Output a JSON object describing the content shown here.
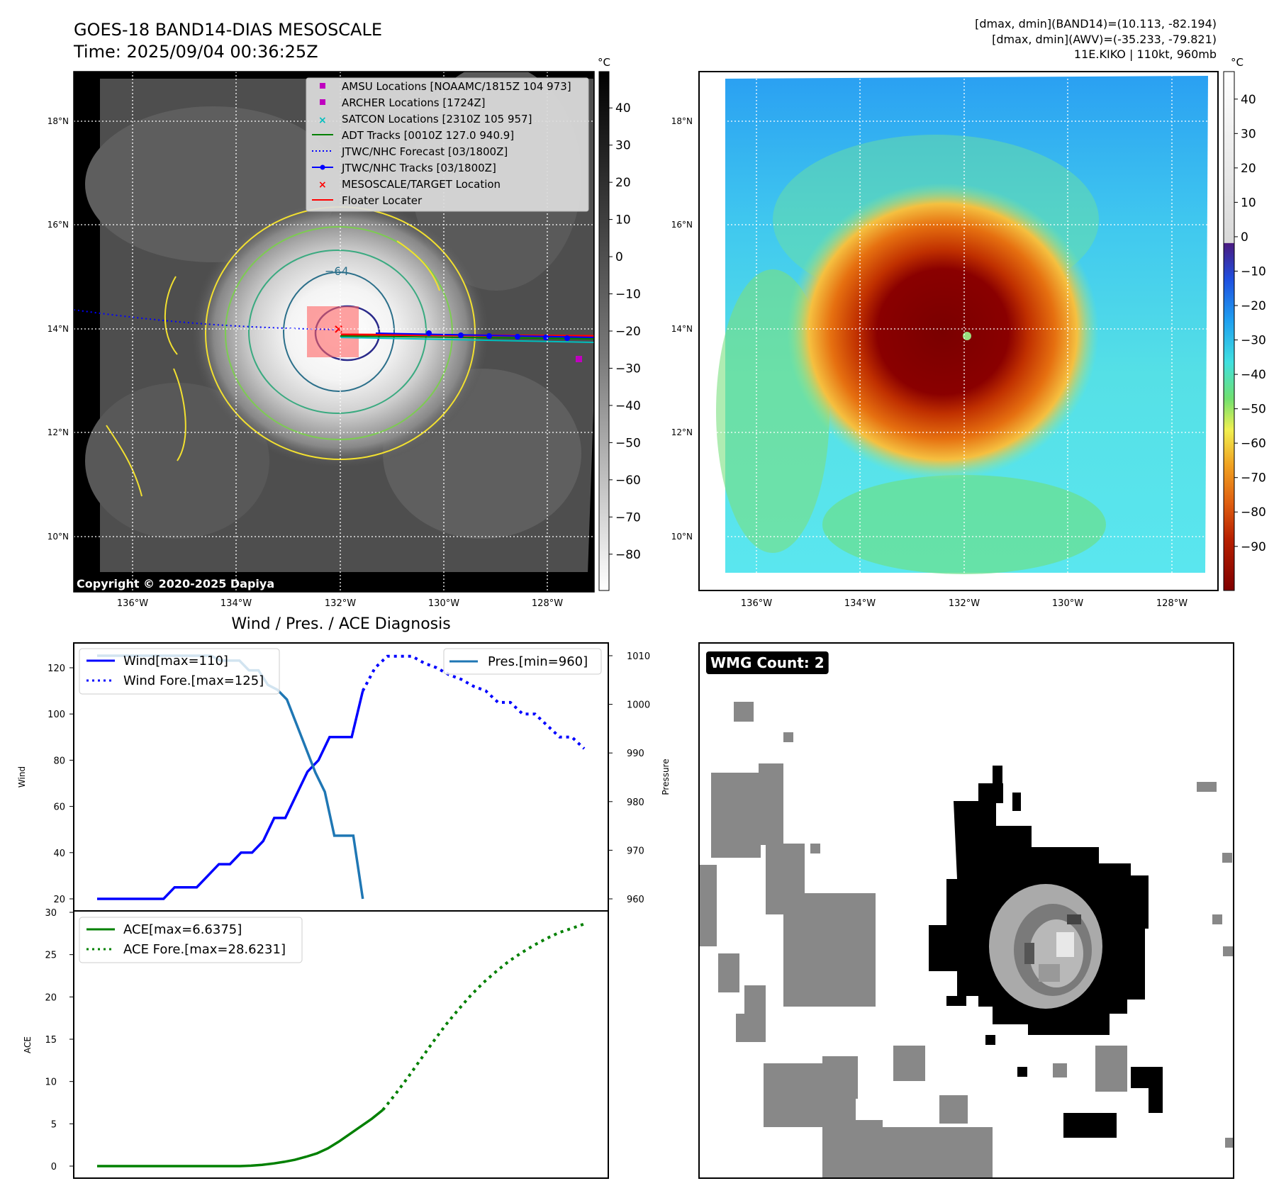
{
  "header": {
    "title_line1": "GOES-18 BAND14-DIAS MESOSCALE",
    "title_line2": "Time: 2025/09/04 00:36:25Z",
    "info_line1": "[dmax, dmin](BAND14)=(10.113, -82.194)",
    "info_line2": "[dmax, dmin](AWV)=(-35.233, -79.821)",
    "info_line3": "11E.KIKO | 110kt, 960mb"
  },
  "copyright": "Copyright © 2020-2025 Dapiya",
  "wmg_label": "WMG Count: 2",
  "map_axes": {
    "lon_ticks": [
      "136°W",
      "134°W",
      "132°W",
      "130°W",
      "128°W"
    ],
    "lat_ticks": [
      "18°N",
      "16°N",
      "14°N",
      "12°N",
      "10°N"
    ]
  },
  "ir_colorbar": {
    "unit": "°C",
    "ticks": [
      "40",
      "30",
      "20",
      "10",
      "0",
      "−10",
      "−20",
      "−30",
      "−40",
      "−50",
      "−60",
      "−70",
      "−80"
    ]
  },
  "awv_colorbar": {
    "unit": "°C",
    "ticks": [
      "40",
      "30",
      "20",
      "10",
      "0",
      "−10",
      "−20",
      "−30",
      "−40",
      "−50",
      "−60",
      "−70",
      "−80",
      "−90"
    ]
  },
  "contour_label": "−64",
  "legend": [
    {
      "label": "AMSU Locations [NOAAMC/1815Z 104 973]",
      "marker": "square",
      "color": "#bf00bf"
    },
    {
      "label": "ARCHER Locations [1724Z]",
      "marker": "square",
      "color": "#bf00bf"
    },
    {
      "label": "SATCON Locations [2310Z 105 957]",
      "marker": "x",
      "color": "#00bfbf"
    },
    {
      "label": "ADT Tracks [0010Z 127.0 940.9]",
      "marker": "line",
      "color": "#008000"
    },
    {
      "label": "JTWC/NHC Forecast [03/1800Z]",
      "marker": "dotted",
      "color": "#0000ff"
    },
    {
      "label": "JTWC/NHC Tracks [03/1800Z]",
      "marker": "line-dot",
      "color": "#0000ff"
    },
    {
      "label": "MESOSCALE/TARGET Location",
      "marker": "x",
      "color": "#ff0000"
    },
    {
      "label": "Floater Locater",
      "marker": "line",
      "color": "#ff0000"
    }
  ],
  "chart_data": [
    {
      "type": "line",
      "title": "Wind / Pres. / ACE Diagnosis",
      "ylabel": "Wind",
      "ylabel_right": "Pressure",
      "ylim": [
        20,
        130
      ],
      "ylim_right": [
        960,
        1010
      ],
      "yticks": [
        20,
        40,
        60,
        80,
        100,
        120
      ],
      "yticks_right": [
        960,
        970,
        980,
        990,
        1000,
        1010
      ],
      "series": [
        {
          "name": "Wind[max=110]",
          "style": "solid",
          "color": "#0000ff",
          "values": [
            20,
            20,
            20,
            20,
            20,
            20,
            20,
            25,
            25,
            25,
            30,
            35,
            35,
            40,
            40,
            45,
            55,
            55,
            65,
            75,
            80,
            90,
            90,
            90,
            110
          ]
        },
        {
          "name": "Wind Fore.[max=125]",
          "style": "dotted",
          "color": "#0000ff",
          "values": [
            110,
            120,
            125,
            125,
            125,
            122,
            120,
            117,
            115,
            112,
            110,
            105,
            105,
            100,
            100,
            95,
            90,
            90,
            85
          ]
        },
        {
          "name": "Pres.[min=960]",
          "style": "solid",
          "color": "#1f77b4",
          "values": [
            1010,
            1010,
            1010,
            1010,
            1010,
            1010,
            1010,
            1010,
            1010,
            1010,
            1010,
            1010,
            1010,
            1009,
            1009,
            1009,
            1007,
            1007,
            1004,
            1003,
            1001,
            996,
            991,
            986,
            982,
            973,
            973,
            973,
            960
          ]
        }
      ]
    },
    {
      "type": "line",
      "ylabel": "ACE",
      "ylim": [
        0,
        30
      ],
      "yticks": [
        0,
        5,
        10,
        15,
        20,
        25,
        30
      ],
      "series": [
        {
          "name": "ACE[max=6.6375]",
          "style": "solid",
          "color": "#008000",
          "values": [
            0,
            0,
            0,
            0,
            0,
            0,
            0,
            0,
            0,
            0,
            0,
            0,
            0,
            0,
            0.05,
            0.15,
            0.3,
            0.5,
            0.75,
            1.1,
            1.5,
            2.1,
            2.9,
            3.8,
            4.7,
            5.6,
            6.6375
          ]
        },
        {
          "name": "ACE Fore.[max=28.6231]",
          "style": "dotted",
          "color": "#008000",
          "values": [
            6.6375,
            8.5,
            10.5,
            12.6,
            14.7,
            16.7,
            18.5,
            20.2,
            21.7,
            23.0,
            24.2,
            25.2,
            26.1,
            26.9,
            27.6,
            28.1,
            28.6231
          ]
        }
      ]
    }
  ]
}
